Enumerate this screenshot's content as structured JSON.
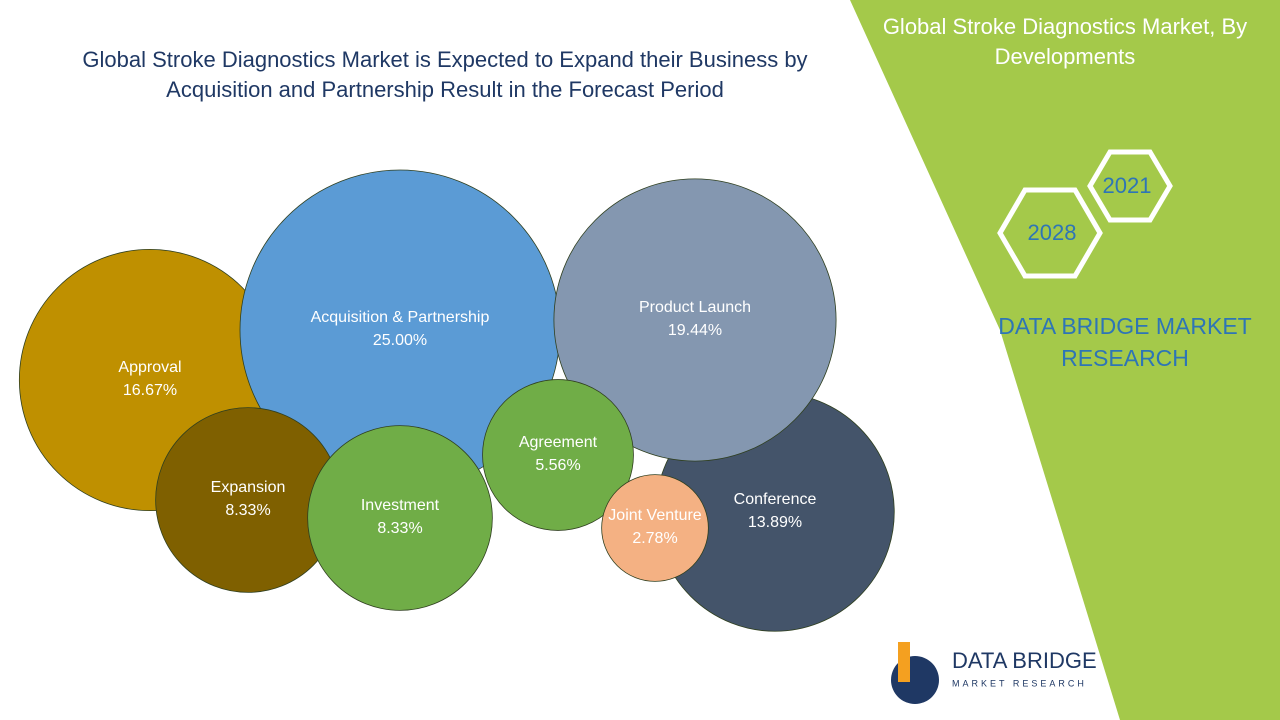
{
  "chart_data": {
    "type": "bubble",
    "title": "Global Stroke Diagnostics Market is Expected to Expand their Business by Acquisition and Partnership Result in the Forecast Period",
    "categories": [
      "Approval",
      "Conference",
      "Acquisition & Partnership",
      "Product Launch",
      "Expansion",
      "Investment",
      "Agreement",
      "Joint Venture"
    ],
    "values": [
      16.67,
      13.89,
      25.0,
      19.44,
      8.33,
      8.33,
      5.56,
      2.78
    ],
    "value_labels": [
      "16.67%",
      "13.89%",
      "25.00%",
      "19.44%",
      "8.33%",
      "8.33%",
      "5.56%",
      "2.78%"
    ],
    "colors": [
      "#bf9000",
      "#44546a",
      "#5b9bd5",
      "#8497b0",
      "#7f6000",
      "#70ad47",
      "#70ad47",
      "#f4b183"
    ]
  },
  "panel": {
    "title": "Global Stroke Diagnostics Market, By Developments",
    "year_start": "2021",
    "year_end": "2028",
    "brand": "DATA BRIDGE MARKET RESEARCH",
    "logo_name": "DATA BRIDGE",
    "logo_tagline": "MARKET RESEARCH"
  }
}
